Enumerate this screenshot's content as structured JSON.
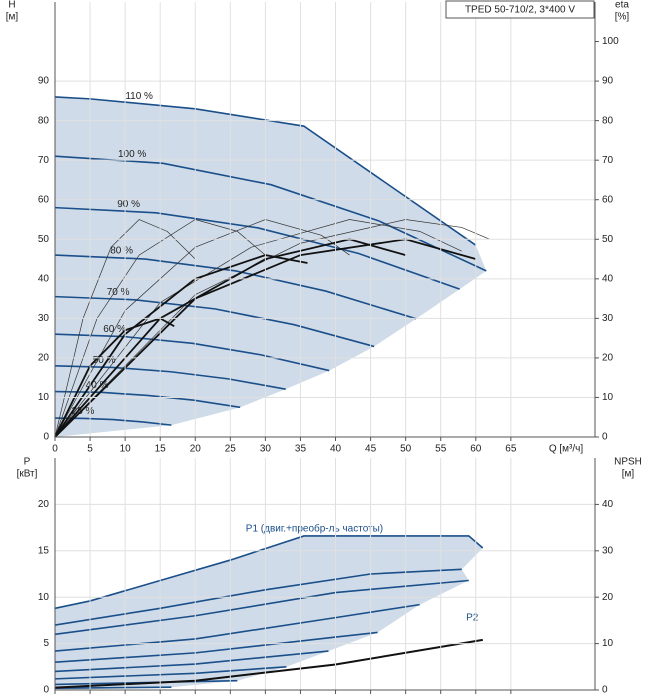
{
  "chart_data": [
    {
      "type": "line",
      "y_label": "H",
      "y_unit": "[м]",
      "y2_label": "eta",
      "y2_unit": "[%]",
      "x_label": "Q [м³/ч]",
      "annotation": "TPED 50-710/2, 3*400 V",
      "xlim": [
        0,
        77
      ],
      "ylim": [
        0,
        110
      ],
      "y2lim": [
        0,
        110
      ],
      "xticks": [
        0,
        5,
        10,
        15,
        20,
        25,
        30,
        35,
        40,
        45,
        50,
        55,
        60,
        65
      ],
      "yticks": [
        0,
        10,
        20,
        30,
        40,
        50,
        60,
        70,
        80,
        90
      ],
      "y2ticks": [
        0,
        10,
        20,
        30,
        40,
        50,
        60,
        70,
        80,
        90,
        100
      ],
      "x_tick_labels": true,
      "grid": true,
      "fill": "#cfdbe8",
      "series": [
        {
          "name": "110 %",
          "color": "#1a4f8a",
          "width": 1.6,
          "x": [
            0,
            5,
            20,
            35.5,
            60
          ],
          "values": [
            86,
            85.5,
            83,
            78.6,
            48.5
          ]
        },
        {
          "name": "100 %",
          "color": "#1a4f8a",
          "width": 1.6,
          "x": [
            0,
            15.4,
            30.8,
            46.1,
            61.5
          ],
          "values": [
            71,
            69.2,
            63.8,
            54.7,
            42
          ]
        },
        {
          "name": "90 %",
          "color": "#1a4f8a",
          "width": 1.6,
          "x": [
            0,
            14.4,
            28.9,
            43.3,
            57.7
          ],
          "values": [
            58,
            56.7,
            52.9,
            46.4,
            37.4
          ]
        },
        {
          "name": "80 %",
          "color": "#1a4f8a",
          "width": 1.6,
          "x": [
            0,
            12.9,
            25.8,
            38.6,
            51.5
          ],
          "values": [
            46,
            45,
            42,
            36.9,
            29.9
          ]
        },
        {
          "name": "70 %",
          "color": "#1a4f8a",
          "width": 1.6,
          "x": [
            0,
            11.4,
            22.8,
            34.1,
            45.5
          ],
          "values": [
            35.5,
            34.7,
            32.4,
            28.4,
            22.9
          ]
        },
        {
          "name": "60 %",
          "color": "#1a4f8a",
          "width": 1.6,
          "x": [
            0,
            9.8,
            19.6,
            29.3,
            39.1
          ],
          "values": [
            26,
            25.4,
            23.7,
            20.8,
            16.8
          ]
        },
        {
          "name": "50 %",
          "color": "#1a4f8a",
          "width": 1.6,
          "x": [
            0,
            8.2,
            16.5,
            24.7,
            32.9
          ],
          "values": [
            18,
            17.6,
            16.5,
            14.7,
            12.1
          ]
        },
        {
          "name": "40 %",
          "color": "#1a4f8a",
          "width": 1.6,
          "x": [
            0,
            6.6,
            13.2,
            19.8,
            26.4
          ],
          "values": [
            11.5,
            11.3,
            10.5,
            9.3,
            7.5
          ]
        },
        {
          "name": "25 %",
          "color": "#1a4f8a",
          "width": 1.6,
          "x": [
            0,
            4.2,
            8.3,
            12.5,
            16.6
          ],
          "values": [
            4.8,
            4.7,
            4.4,
            3.8,
            3.0
          ]
        },
        {
          "axis": "y2",
          "color": "#333333",
          "width": 0.7,
          "x": [
            0,
            4,
            8,
            12,
            16,
            20
          ],
          "values": [
            0,
            30,
            48,
            55,
            52,
            45
          ]
        },
        {
          "axis": "y2",
          "color": "#333333",
          "width": 0.7,
          "x": [
            0,
            6,
            12,
            20,
            26,
            30
          ],
          "values": [
            0,
            30,
            46,
            55,
            52,
            46
          ]
        },
        {
          "axis": "y2",
          "color": "#333333",
          "width": 0.7,
          "x": [
            0,
            10,
            20,
            30,
            38,
            42
          ],
          "values": [
            0,
            32,
            48,
            55,
            51,
            46
          ]
        },
        {
          "axis": "y2",
          "color": "#333333",
          "width": 0.7,
          "x": [
            0,
            15,
            28,
            42,
            52,
            58
          ],
          "values": [
            0,
            34,
            48,
            55,
            52,
            47
          ]
        },
        {
          "axis": "y2",
          "color": "#333333",
          "width": 0.7,
          "x": [
            0,
            20,
            35,
            50,
            58,
            62
          ],
          "values": [
            0,
            36,
            49,
            55,
            53,
            50
          ]
        },
        {
          "axis": "y2",
          "color": "#111111",
          "width": 1.8,
          "x": [
            0,
            5,
            10,
            15,
            17
          ],
          "values": [
            0,
            18,
            27,
            30,
            28
          ]
        },
        {
          "axis": "y2",
          "color": "#111111",
          "width": 1.8,
          "x": [
            0,
            10,
            20,
            30,
            36
          ],
          "values": [
            0,
            26,
            40,
            46,
            44
          ]
        },
        {
          "axis": "y2",
          "color": "#111111",
          "width": 1.8,
          "x": [
            0,
            15,
            30,
            42,
            50
          ],
          "values": [
            0,
            30,
            45,
            50,
            46
          ]
        },
        {
          "axis": "y2",
          "color": "#111111",
          "width": 1.8,
          "x": [
            0,
            20,
            35,
            50,
            60
          ],
          "values": [
            0,
            35,
            46,
            50,
            45
          ]
        }
      ]
    },
    {
      "type": "line",
      "y_label": "P",
      "y_unit": "[кВт]",
      "y2_label": "NPSH",
      "y2_unit": "[м]",
      "xlim": [
        0,
        77
      ],
      "ylim": [
        0,
        25
      ],
      "y2lim": [
        0,
        50
      ],
      "xticks": [
        0,
        5,
        10,
        15,
        20,
        25,
        30,
        35,
        40,
        45,
        50,
        55,
        60,
        65
      ],
      "yticks": [
        0,
        5,
        10,
        15,
        20
      ],
      "y2ticks": [
        0,
        10,
        20,
        30,
        40
      ],
      "x_tick_labels": false,
      "grid": true,
      "fill": "#cfdbe8",
      "series": [
        {
          "name": "P1 (двиг.+преобр-ль частоты)",
          "color": "#1a4f8a",
          "width": 1.6,
          "x": [
            0,
            5,
            15,
            25,
            35.5,
            59,
            61
          ],
          "values": [
            8.8,
            9.6,
            11.8,
            14,
            16.6,
            16.6,
            15.3
          ]
        },
        {
          "name": "P2",
          "color": "#1a4f8a",
          "width": 1.6,
          "x": [
            0,
            15,
            30,
            45,
            58
          ],
          "values": [
            7,
            8.8,
            10.8,
            12.5,
            13
          ]
        },
        {
          "color": "#1a4f8a",
          "width": 1.6,
          "x": [
            0,
            20,
            40,
            59
          ],
          "values": [
            6,
            8,
            10.5,
            11.8
          ]
        },
        {
          "color": "#1a4f8a",
          "width": 1.6,
          "x": [
            0,
            20,
            40,
            52
          ],
          "values": [
            4.2,
            5.5,
            7.8,
            9.2
          ]
        },
        {
          "color": "#1a4f8a",
          "width": 1.6,
          "x": [
            0,
            20,
            40,
            46
          ],
          "values": [
            3,
            4,
            5.7,
            6.2
          ]
        },
        {
          "color": "#1a4f8a",
          "width": 1.6,
          "x": [
            0,
            20,
            39
          ],
          "values": [
            2,
            2.8,
            4.2
          ]
        },
        {
          "color": "#1a4f8a",
          "width": 1.6,
          "x": [
            0,
            20,
            33
          ],
          "values": [
            1.2,
            1.8,
            2.5
          ]
        },
        {
          "color": "#1a4f8a",
          "width": 1.6,
          "x": [
            0,
            26
          ],
          "values": [
            0.6,
            1
          ]
        },
        {
          "color": "#1a4f8a",
          "width": 1.6,
          "x": [
            0,
            16.6
          ],
          "values": [
            0.2,
            0.3
          ]
        },
        {
          "axis": "y2",
          "color": "#111111",
          "width": 2,
          "x": [
            0,
            20,
            40,
            61
          ],
          "values": [
            0.5,
            2,
            5.5,
            10.8
          ]
        }
      ]
    }
  ]
}
